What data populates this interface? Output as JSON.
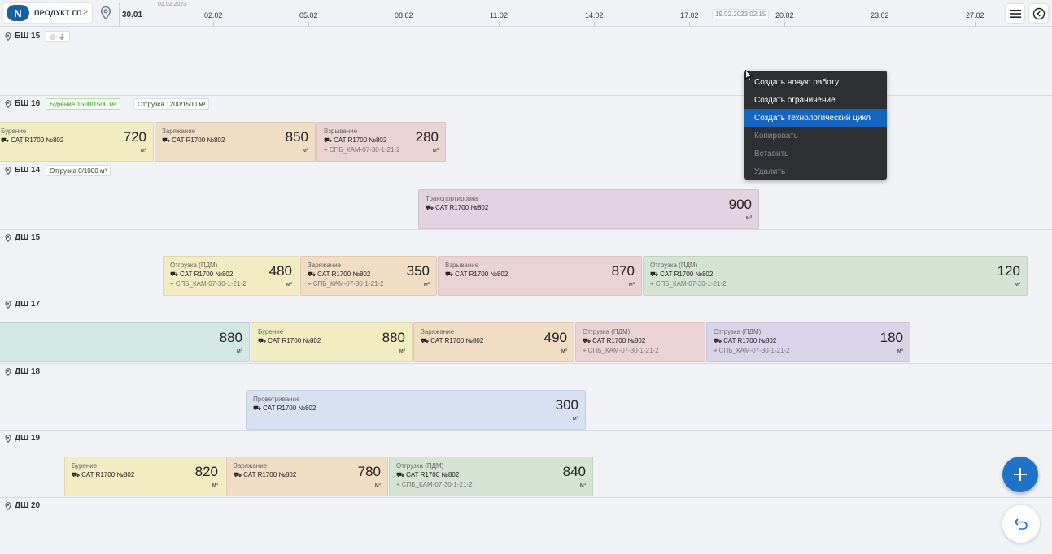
{
  "header": {
    "logo_text": "ПРОДУКТ ГП",
    "logo_chevron": ">",
    "date_sub": "01.02.2023",
    "current_time": "19.02.2023 02:15",
    "days": [
      "30.01",
      "02.02",
      "05.02",
      "08.02",
      "11.02",
      "14.02",
      "17.02",
      "20.02",
      "23.02",
      "27.02"
    ]
  },
  "rows": {
    "bsh15": {
      "label": "БШ 15",
      "badge_icons": "♲ ⏚"
    },
    "bsh16": {
      "label": "БШ 16",
      "badge1": "Бурение 1500/1500 м³",
      "badge2": "Отгрузка 1200/1500 м³"
    },
    "bsh14": {
      "label": "БШ 14",
      "badge1": "Отгрузка 0/1000 м³"
    },
    "dsh15": {
      "label": "ДШ 15"
    },
    "dsh17": {
      "label": "ДШ 17"
    },
    "dsh18": {
      "label": "ДШ 18"
    },
    "dsh19": {
      "label": "ДШ 19"
    },
    "dsh20": {
      "label": "ДШ 20"
    }
  },
  "machine_label": "CAT R1700 №802",
  "machine_icon": "excavator-icon",
  "unit": "м³",
  "tasks": {
    "t1": {
      "name": "Бурение",
      "value": "720"
    },
    "t2": {
      "name": "Заряжание",
      "value": "850"
    },
    "t3": {
      "name": "Взрывание",
      "value": "280",
      "loc": "СПБ_КАМ-07-30-1-21-2"
    },
    "t4": {
      "name": "Транспортировка",
      "value": "900"
    },
    "t5": {
      "name": "Отгрузка (ПДМ)",
      "value": "480",
      "loc": "СПБ_КАМ-07-30-1-21-2"
    },
    "t6": {
      "name": "Заряжание",
      "value": "350",
      "loc": "СПБ_КАМ-07-30-1-21-2"
    },
    "t7": {
      "name": "Взрывание",
      "value": "870"
    },
    "t8": {
      "name": "Отгрузка (ПДМ)",
      "value": "120",
      "loc": "СПБ_КАМ-07-30-1-21-2"
    },
    "t9": {
      "value": "880"
    },
    "t10": {
      "name": "Бурение",
      "value": "880"
    },
    "t11": {
      "name": "Заряжание",
      "value": "490"
    },
    "t12": {
      "name": "Отгрузка (ПДМ)",
      "value": "",
      "loc": "СПБ_КАМ-07-30-1-21-2"
    },
    "t13": {
      "name": "Отгрузка (ПДМ)",
      "value": "180",
      "loc": "СПБ_КАМ-07-30-1-21-2"
    },
    "t14": {
      "name": "Проветривание",
      "value": "300"
    },
    "t15": {
      "name": "Бурение",
      "value": "820"
    },
    "t16": {
      "name": "Заряжание",
      "value": "780"
    },
    "t17": {
      "name": "Отгрузка (ПДМ)",
      "value": "840",
      "loc": "СПБ_КАМ-07-30-1-21-2"
    }
  },
  "context_menu": {
    "items": [
      {
        "label": "Создать новую работу"
      },
      {
        "label": "Создать ограничение"
      },
      {
        "label": "Создать технологический цикл"
      },
      {
        "label": "Копировать"
      },
      {
        "label": "Вставить"
      },
      {
        "label": "Удалить"
      }
    ]
  },
  "colors": {
    "accent": "#1e73c8",
    "menu_bg": "#2d2f33",
    "menu_active": "#1565c0"
  }
}
